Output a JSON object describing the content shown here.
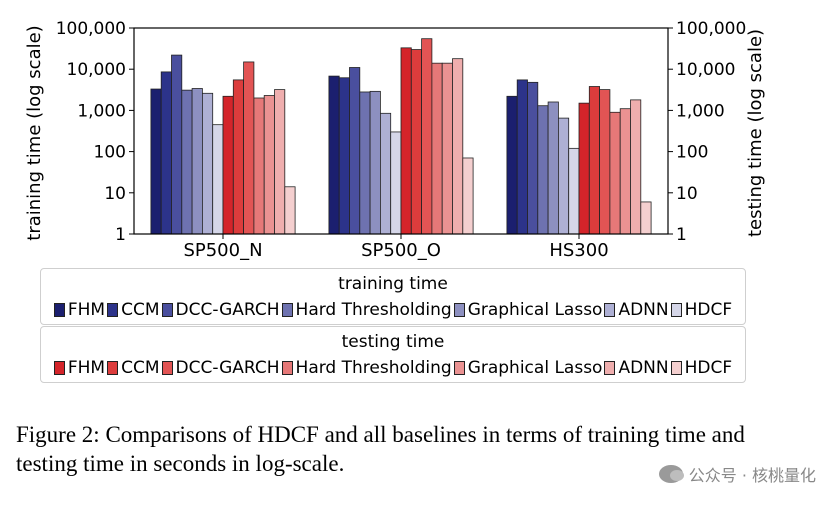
{
  "chart_data": {
    "type": "bar",
    "categories": [
      "SP500_N",
      "SP500_O",
      "HS300"
    ],
    "y_scale": "log",
    "ylim": [
      1,
      100000
    ],
    "yticks": [
      "1",
      "10",
      "100",
      "1,000",
      "10,000",
      "100,000"
    ],
    "ylabel_left": "training time (log scale)",
    "ylabel_right": "testing time (log scale)",
    "groups": [
      {
        "title": "training time",
        "series": [
          {
            "name": "FHM",
            "color": "#1b1f6f",
            "values": [
              3300,
              6800,
              2200
            ]
          },
          {
            "name": "CCM",
            "color": "#2c338a",
            "values": [
              8600,
              6200,
              5500
            ]
          },
          {
            "name": "DCC-GARCH",
            "color": "#4a4f9e",
            "values": [
              22000,
              11000,
              4800
            ]
          },
          {
            "name": "Hard Thresholding",
            "color": "#6e72b0",
            "values": [
              3100,
              2800,
              1300
            ]
          },
          {
            "name": "Graphical Lasso",
            "color": "#8d90c0",
            "values": [
              3400,
              2900,
              1600
            ]
          },
          {
            "name": "ADNN",
            "color": "#aeb0d4",
            "values": [
              2600,
              850,
              650
            ]
          },
          {
            "name": "HDCF",
            "color": "#d5d6e8",
            "values": [
              450,
              300,
              120
            ]
          }
        ]
      },
      {
        "title": "testing time",
        "series": [
          {
            "name": "FHM",
            "color": "#d4242a",
            "values": [
              2200,
              33000,
              1500
            ]
          },
          {
            "name": "CCM",
            "color": "#dc3c3c",
            "values": [
              5500,
              30000,
              3800
            ]
          },
          {
            "name": "DCC-GARCH",
            "color": "#e25454",
            "values": [
              15000,
              55000,
              3200
            ]
          },
          {
            "name": "Hard Thresholding",
            "color": "#e67878",
            "values": [
              2000,
              14000,
              900
            ]
          },
          {
            "name": "Graphical Lasso",
            "color": "#ea9292",
            "values": [
              2300,
              14000,
              1100
            ]
          },
          {
            "name": "ADNN",
            "color": "#efaeae",
            "values": [
              3200,
              18000,
              1800
            ]
          },
          {
            "name": "HDCF",
            "color": "#f4cfcf",
            "values": [
              14,
              70,
              6
            ]
          }
        ]
      }
    ]
  },
  "caption": "Figure 2: Comparisons of HDCF and all baselines in terms of training time and testing time in seconds in log-scale.",
  "watermark": "公众号 · 核桃量化"
}
